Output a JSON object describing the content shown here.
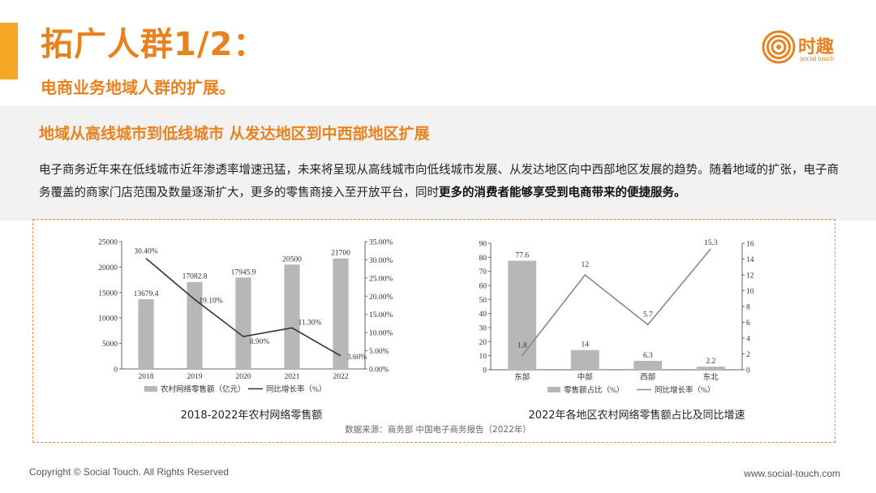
{
  "header": {
    "title": "拓广人群1/2：",
    "subtitle": "电商业务地域人群的扩展。"
  },
  "logo": {
    "name": "时趣",
    "tagline": "social touch",
    "icon": "concentric-rings-logo-icon",
    "color": "#e8821e"
  },
  "band": {
    "heading": "地域从高线城市到低线城市  从发达地区到中西部地区扩展",
    "text_plain": "电子商务近年来在低线城市近年渗透率增速迅猛，未来将呈现从高线城市向低线城市发展、从发达地区向中西部地区发展的趋势。随着地域的扩张，电子商务覆盖的商家门店范围及数量逐渐扩大，更多的零售商接入至开放平台，同时",
    "text_bold": "更多的消费者能够享受到电商带来的便捷服务。"
  },
  "chart_data": [
    {
      "type": "bar",
      "title": "2018-2022年农村网络零售额",
      "categories": [
        "2018",
        "2019",
        "2020",
        "2021",
        "2022"
      ],
      "series": [
        {
          "name": "农村网络零售额（亿元）",
          "type": "bar",
          "axis": "left",
          "values": [
            13679.4,
            17082.8,
            17945.9,
            20500,
            21700
          ],
          "labels": [
            "13679.4",
            "17082.8",
            "17945.9",
            "20500",
            "21700"
          ]
        },
        {
          "name": "同比增长率（%）",
          "type": "line",
          "axis": "right",
          "values": [
            30.4,
            19.1,
            8.9,
            11.3,
            3.6
          ],
          "labels": [
            "30.40%",
            "19.10%",
            "8.90%",
            "11.30%",
            "3.60%"
          ]
        }
      ],
      "ylim_left": [
        0,
        25000
      ],
      "yticks_left": [
        "0",
        "5000",
        "10000",
        "15000",
        "20000",
        "25000"
      ],
      "ylim_right": [
        0,
        35
      ],
      "yticks_right": [
        "0.00%",
        "5.00%",
        "10.00%",
        "15.00%",
        "20.00%",
        "25.00%",
        "30.00%",
        "35.00%"
      ],
      "legend": "bottom",
      "colors": {
        "bar": "#b7b7b7",
        "line": "#333333"
      }
    },
    {
      "type": "bar",
      "title": "2022年各地区农村网络零售额占比及同比增速",
      "categories": [
        "东部",
        "中部",
        "西部",
        "东北"
      ],
      "series": [
        {
          "name": "零售额占比（%）",
          "type": "bar",
          "axis": "left",
          "values": [
            77.6,
            14,
            6.3,
            2.2
          ],
          "labels": [
            "77.6",
            "14",
            "6.3",
            "2.2"
          ]
        },
        {
          "name": "同比增长率（%）",
          "type": "line",
          "axis": "right",
          "values": [
            1.8,
            12,
            5.7,
            15.3
          ],
          "labels": [
            "1.8",
            "12",
            "5.7",
            "15.3"
          ]
        }
      ],
      "ylim_left": [
        0,
        90
      ],
      "yticks_left": [
        "0",
        "10",
        "20",
        "30",
        "40",
        "50",
        "60",
        "70",
        "80",
        "90"
      ],
      "ylim_right": [
        0,
        16
      ],
      "yticks_right": [
        "0",
        "2",
        "4",
        "6",
        "8",
        "10",
        "12",
        "14",
        "16"
      ],
      "legend": "bottom",
      "colors": {
        "bar": "#b7b7b7",
        "line": "#888888"
      }
    }
  ],
  "source": "数据来源：商务部 中国电子商务报告（2022年）",
  "footer": {
    "copyright": "Copyright © Social Touch. All Rights Reserved",
    "website": "www.social-touch.com"
  }
}
